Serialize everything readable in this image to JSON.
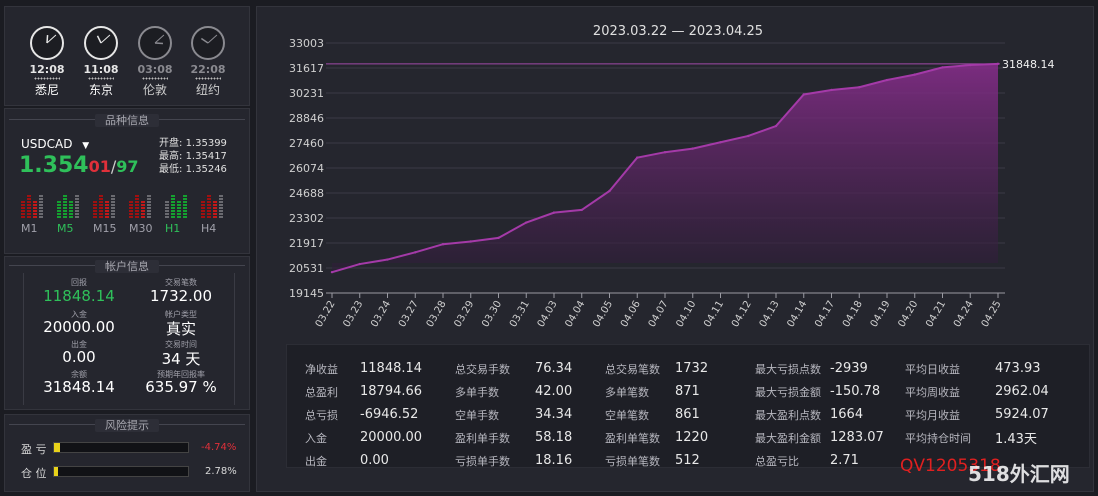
{
  "clocks": [
    {
      "time": "12:08",
      "city": "悉尼",
      "active": true
    },
    {
      "time": "11:08",
      "city": "东京",
      "active": true
    },
    {
      "time": "03:08",
      "city": "伦敦",
      "active": false
    },
    {
      "time": "22:08",
      "city": "纽约",
      "active": false
    }
  ],
  "symbol_section": {
    "title": "品种信息",
    "symbol": "USDCAD",
    "price_big": "1.354",
    "price_small": "01",
    "price_sep": "/",
    "price_small2": "97",
    "open_label": "开盘:",
    "open": "1.35399",
    "high_label": "最高:",
    "high": "1.35417",
    "low_label": "最低:",
    "low": "1.35246",
    "timeframes": [
      "M1",
      "M5",
      "M15",
      "M30",
      "H1",
      "H4"
    ]
  },
  "account_section": {
    "title": "帐户信息",
    "profit_label": "回报",
    "profit": "11848.14",
    "trades_label": "交易笔数",
    "trades": "1732.00",
    "deposit_label": "入金",
    "deposit": "20000.00",
    "acct_type_label": "帐户类型",
    "acct_type": "真实",
    "withdraw_label": "出金",
    "withdraw": "0.00",
    "trade_time_label": "交易时间",
    "trade_time": "34 天",
    "balance_label": "余额",
    "balance": "31848.14",
    "annual_label": "预期年回报率",
    "annual": "635.97 %"
  },
  "risk_section": {
    "title": "风险提示",
    "profit_loss_label": "盈 亏",
    "profit_loss_value": "-4.74%",
    "profit_loss_fraction": 0.047,
    "position_label": "仓 位",
    "position_value": "2.78%",
    "position_fraction": 0.028
  },
  "chart_data": {
    "type": "area",
    "title": "2023.03.22 — 2023.04.25",
    "x": [
      "03.22",
      "03.23",
      "03.24",
      "03.27",
      "03.28",
      "03.29",
      "03.30",
      "03.31",
      "04.03",
      "04.04",
      "04.05",
      "04.06",
      "04.07",
      "04.10",
      "04.11",
      "04.12",
      "04.13",
      "04.14",
      "04.17",
      "04.18",
      "04.19",
      "04.20",
      "04.21",
      "04.24",
      "04.25"
    ],
    "values": [
      20300,
      20750,
      21000,
      21400,
      21850,
      22000,
      22200,
      23050,
      23600,
      23750,
      24800,
      26650,
      26950,
      27150,
      27500,
      27850,
      28400,
      30150,
      30400,
      30550,
      30950,
      31250,
      31650,
      31780,
      31848.14
    ],
    "yticks": [
      19145,
      20531,
      21917,
      23302,
      24688,
      26074,
      27460,
      28846,
      30231,
      31617,
      33003
    ],
    "ylim": [
      19145,
      33003
    ],
    "last_label": "31848.14",
    "color": "#a43aa8"
  },
  "stats": {
    "col1": [
      {
        "k": "净收益",
        "v": "11848.14"
      },
      {
        "k": "总盈利",
        "v": "18794.66"
      },
      {
        "k": "总亏损",
        "v": "-6946.52"
      },
      {
        "k": "入金",
        "v": "20000.00"
      },
      {
        "k": "出金",
        "v": "0.00"
      }
    ],
    "col2": [
      {
        "k": "总交易手数",
        "v": "76.34"
      },
      {
        "k": "多单手数",
        "v": "42.00"
      },
      {
        "k": "空单手数",
        "v": "34.34"
      },
      {
        "k": "盈利单手数",
        "v": "58.18"
      },
      {
        "k": "亏损单手数",
        "v": "18.16"
      }
    ],
    "col3": [
      {
        "k": "总交易笔数",
        "v": "1732"
      },
      {
        "k": "多单笔数",
        "v": "871"
      },
      {
        "k": "空单笔数",
        "v": "861"
      },
      {
        "k": "盈利单笔数",
        "v": "1220"
      },
      {
        "k": "亏损单笔数",
        "v": "512"
      }
    ],
    "col4": [
      {
        "k": "最大亏损点数",
        "v": "-2939"
      },
      {
        "k": "最大亏损金额",
        "v": "-150.78"
      },
      {
        "k": "最大盈利点数",
        "v": "1664"
      },
      {
        "k": "最大盈利金额",
        "v": "1283.07"
      },
      {
        "k": "总盈亏比",
        "v": "2.71"
      }
    ],
    "col5": [
      {
        "k": "平均日收益",
        "v": "473.93"
      },
      {
        "k": "平均周收益",
        "v": "2962.04"
      },
      {
        "k": "平均月收益",
        "v": "5924.07"
      },
      {
        "k": "平均持仓时间",
        "v": "1.43天"
      },
      {
        "k": "",
        "v": ""
      }
    ]
  },
  "watermark": {
    "text1": "QV1205318",
    "text2": "518外汇网"
  }
}
